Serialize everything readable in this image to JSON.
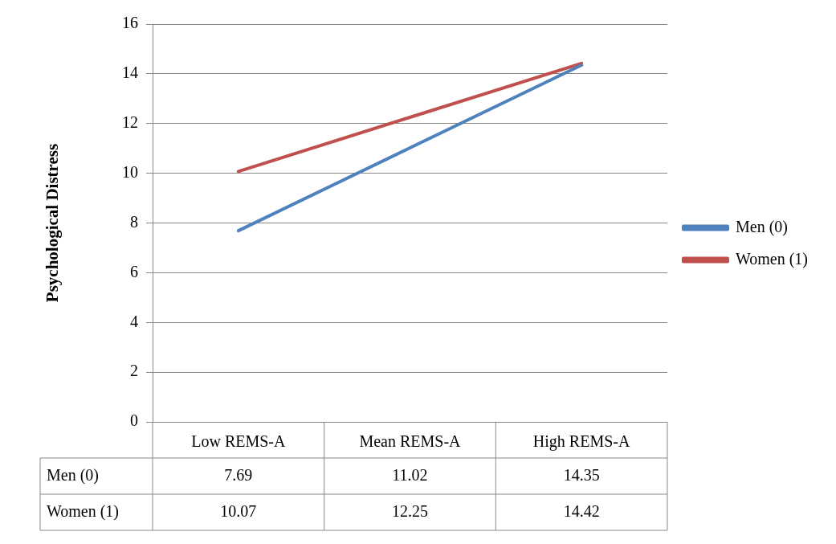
{
  "chart_data": {
    "type": "line",
    "ylabel": "Psychological Distress",
    "categories": [
      "Low REMS-A",
      "Mean REMS-A",
      "High REMS-A"
    ],
    "series": [
      {
        "name": "Men (0)",
        "color": "#4f81bd",
        "values": [
          7.69,
          11.02,
          14.35
        ]
      },
      {
        "name": "Women (1)",
        "color": "#c0504d",
        "values": [
          10.07,
          12.25,
          14.42
        ]
      }
    ],
    "ylim": [
      0,
      16
    ],
    "yticks": [
      0,
      2,
      4,
      6,
      8,
      10,
      12,
      14,
      16
    ],
    "grid": "y",
    "legend": "right",
    "marker": "none",
    "line_style": "solid",
    "data_labels": true
  }
}
